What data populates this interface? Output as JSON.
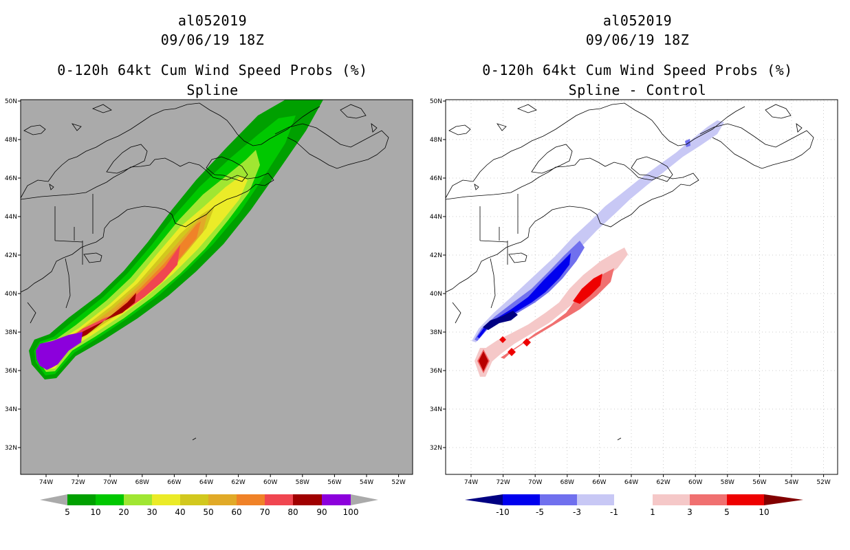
{
  "colors": {
    "land_background_left": "#aaaaaa",
    "coast_line": "#000000",
    "grid_line": "#bbbbbb",
    "prob_5": "#00a000",
    "prob_10": "#00c800",
    "prob_20": "#a0e632",
    "prob_30": "#ebeb28",
    "prob_40": "#d2c81e",
    "prob_50": "#e1aa28",
    "prob_60": "#f08228",
    "prob_70": "#f04650",
    "prob_80": "#a00000",
    "prob_90": "#8c00dc",
    "diff_lt_-10": "#000082",
    "diff_-10_-5": "#0000ee",
    "diff_-5_-3": "#7070ee",
    "diff_-3_-1": "#c8c8f5",
    "diff_-1_1": "#ffffff",
    "diff_1_3": "#f5c8c8",
    "diff_3_5": "#f07070",
    "diff_5_10": "#ee0000",
    "diff_gt_10": "#820000"
  },
  "map": {
    "lon_ticks": [
      "74W",
      "72W",
      "70W",
      "68W",
      "66W",
      "64W",
      "62W",
      "60W",
      "58W",
      "56W",
      "54W",
      "52W"
    ],
    "lat_ticks": [
      "50N",
      "48N",
      "46N",
      "44N",
      "42N",
      "40N",
      "38N",
      "36N",
      "34N",
      "32N"
    ]
  },
  "left_panel": {
    "storm_id": "al052019",
    "datetime": "09/06/19 18Z",
    "product": "0-120h 64kt Cum Wind Speed Probs (%)",
    "subtitle": "Spline",
    "colorbar_labels": [
      "5",
      "10",
      "20",
      "30",
      "40",
      "50",
      "60",
      "70",
      "80",
      "90",
      "100"
    ]
  },
  "right_panel": {
    "storm_id": "al052019",
    "datetime": "09/06/19 18Z",
    "product": "0-120h 64kt Cum Wind Speed Probs (%)",
    "subtitle": "Spline - Control",
    "colorbar_labels": [
      "-10",
      "-5",
      "-3",
      "-1",
      "1",
      "3",
      "5",
      "10"
    ]
  }
}
